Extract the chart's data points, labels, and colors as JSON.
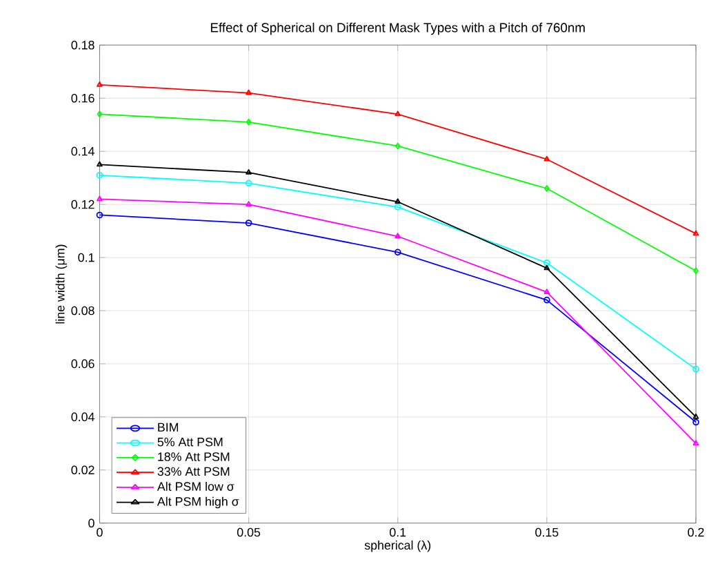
{
  "chart_data": {
    "type": "line",
    "title": "Effect of Spherical on Different Mask Types with a Pitch of 760nm",
    "xlabel": "spherical (λ)",
    "ylabel": "line width (μm)",
    "x": [
      0,
      0.05,
      0.1,
      0.15,
      0.2
    ],
    "series": [
      {
        "name": "BIM",
        "color": "#0000ff",
        "marker": "circle",
        "values": [
          0.116,
          0.113,
          0.102,
          0.084,
          0.038
        ]
      },
      {
        "name": "5%  Att PSM",
        "color": "#00ffff",
        "marker": "circle",
        "values": [
          0.131,
          0.128,
          0.119,
          0.098,
          0.058
        ]
      },
      {
        "name": "18% Att PSM",
        "color": "#00ff00",
        "marker": "diamond",
        "values": [
          0.154,
          0.151,
          0.142,
          0.126,
          0.095
        ]
      },
      {
        "name": "33% Att PSM",
        "color": "#ff0000",
        "marker": "triangle",
        "values": [
          0.165,
          0.162,
          0.154,
          0.137,
          0.109
        ]
      },
      {
        "name": "Alt PSM low σ",
        "color": "#ff00ff",
        "marker": "triangle",
        "values": [
          0.122,
          0.12,
          0.108,
          0.087,
          0.03
        ]
      },
      {
        "name": "Alt PSM high σ",
        "color": "#000000",
        "marker": "triangle",
        "values": [
          0.135,
          0.132,
          0.121,
          0.096,
          0.04
        ]
      }
    ],
    "xlim": [
      0,
      0.2
    ],
    "ylim": [
      0,
      0.18
    ],
    "xticks": [
      0,
      0.05,
      0.1,
      0.15,
      0.2
    ],
    "yticks": [
      0,
      0.02,
      0.04,
      0.06,
      0.08,
      0.1,
      0.12,
      0.14,
      0.16,
      0.18
    ],
    "grid": true,
    "legend": "bottom left",
    "line_style": "solid"
  }
}
